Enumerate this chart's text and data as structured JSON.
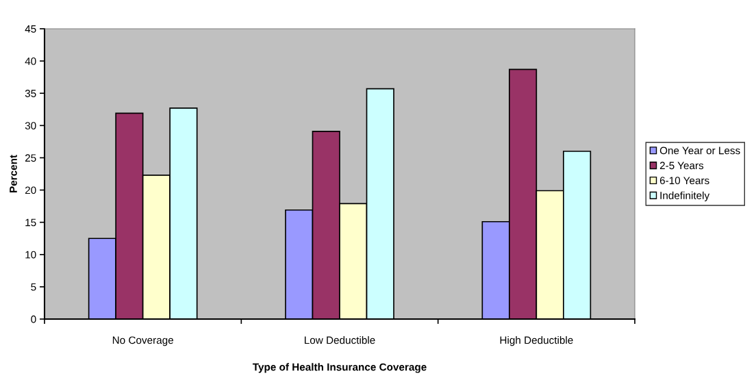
{
  "chart_data": {
    "type": "bar",
    "xlabel": "Type of Health Insurance Coverage",
    "ylabel": "Percent",
    "categories": [
      "No Coverage",
      "Low Deductible",
      "High Deductible"
    ],
    "series": [
      {
        "name": "One Year or Less",
        "color": "#9999ff",
        "values": [
          12.5,
          16.9,
          15.1
        ]
      },
      {
        "name": "2-5 Years",
        "color": "#993366",
        "values": [
          31.9,
          29.1,
          38.7
        ]
      },
      {
        "name": "6-10 Years",
        "color": "#ffffcc",
        "values": [
          22.3,
          17.9,
          19.9
        ]
      },
      {
        "name": "Indefinitely",
        "color": "#ccffff",
        "values": [
          32.7,
          35.7,
          26.0
        ]
      }
    ],
    "ylim": [
      0,
      45
    ],
    "yticks": [
      0,
      5,
      10,
      15,
      20,
      25,
      30,
      35,
      40,
      45
    ],
    "grid": false,
    "legend": "right"
  }
}
